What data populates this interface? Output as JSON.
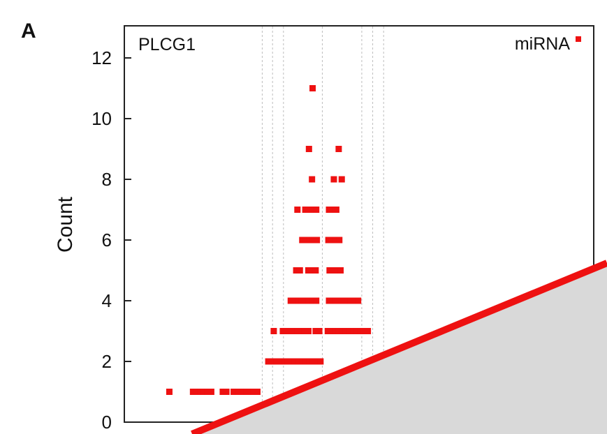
{
  "chart_data": {
    "type": "scatter",
    "panel_label": "A",
    "title": "PLCG1",
    "ylabel": "Count",
    "xlabel": "",
    "ylim": [
      0,
      13
    ],
    "yticks": [
      0,
      2,
      4,
      6,
      8,
      10,
      12
    ],
    "grid": "vertical dotted reference lines",
    "legend": {
      "position": "top-right",
      "entries": [
        "miRNA"
      ]
    },
    "point_color": "#ee1111",
    "vertical_reference_x": [
      0.432,
      0.449,
      0.467,
      0.531,
      0.596,
      0.614,
      0.632
    ],
    "series": [
      {
        "name": "miRNA",
        "points": [
          {
            "x": 0.279,
            "y": 1
          },
          {
            "x": 0.318,
            "y": 1
          },
          {
            "x": 0.324,
            "y": 1
          },
          {
            "x": 0.33,
            "y": 1
          },
          {
            "x": 0.336,
            "y": 1
          },
          {
            "x": 0.342,
            "y": 1
          },
          {
            "x": 0.348,
            "y": 1
          },
          {
            "x": 0.367,
            "y": 1
          },
          {
            "x": 0.373,
            "y": 1
          },
          {
            "x": 0.385,
            "y": 1
          },
          {
            "x": 0.394,
            "y": 1
          },
          {
            "x": 0.4,
            "y": 1
          },
          {
            "x": 0.406,
            "y": 1
          },
          {
            "x": 0.412,
            "y": 1
          },
          {
            "x": 0.418,
            "y": 1
          },
          {
            "x": 0.424,
            "y": 1
          },
          {
            "x": 0.442,
            "y": 2
          },
          {
            "x": 0.448,
            "y": 2
          },
          {
            "x": 0.456,
            "y": 2
          },
          {
            "x": 0.462,
            "y": 2
          },
          {
            "x": 0.468,
            "y": 2
          },
          {
            "x": 0.474,
            "y": 2
          },
          {
            "x": 0.48,
            "y": 2
          },
          {
            "x": 0.486,
            "y": 2
          },
          {
            "x": 0.492,
            "y": 2
          },
          {
            "x": 0.498,
            "y": 2
          },
          {
            "x": 0.504,
            "y": 2
          },
          {
            "x": 0.51,
            "y": 2
          },
          {
            "x": 0.516,
            "y": 2
          },
          {
            "x": 0.522,
            "y": 2
          },
          {
            "x": 0.528,
            "y": 2
          },
          {
            "x": 0.451,
            "y": 3
          },
          {
            "x": 0.466,
            "y": 3
          },
          {
            "x": 0.472,
            "y": 3
          },
          {
            "x": 0.478,
            "y": 3
          },
          {
            "x": 0.484,
            "y": 3
          },
          {
            "x": 0.49,
            "y": 3
          },
          {
            "x": 0.496,
            "y": 3
          },
          {
            "x": 0.502,
            "y": 3
          },
          {
            "x": 0.508,
            "y": 3
          },
          {
            "x": 0.52,
            "y": 3
          },
          {
            "x": 0.526,
            "y": 3
          },
          {
            "x": 0.54,
            "y": 3
          },
          {
            "x": 0.546,
            "y": 3
          },
          {
            "x": 0.552,
            "y": 3
          },
          {
            "x": 0.558,
            "y": 3
          },
          {
            "x": 0.564,
            "y": 3
          },
          {
            "x": 0.57,
            "y": 3
          },
          {
            "x": 0.576,
            "y": 3
          },
          {
            "x": 0.582,
            "y": 3
          },
          {
            "x": 0.588,
            "y": 3
          },
          {
            "x": 0.594,
            "y": 3
          },
          {
            "x": 0.6,
            "y": 3
          },
          {
            "x": 0.606,
            "y": 3
          },
          {
            "x": 0.479,
            "y": 4
          },
          {
            "x": 0.485,
            "y": 4
          },
          {
            "x": 0.491,
            "y": 4
          },
          {
            "x": 0.497,
            "y": 4
          },
          {
            "x": 0.503,
            "y": 4
          },
          {
            "x": 0.509,
            "y": 4
          },
          {
            "x": 0.515,
            "y": 4
          },
          {
            "x": 0.521,
            "y": 4
          },
          {
            "x": 0.542,
            "y": 4
          },
          {
            "x": 0.548,
            "y": 4
          },
          {
            "x": 0.554,
            "y": 4
          },
          {
            "x": 0.56,
            "y": 4
          },
          {
            "x": 0.566,
            "y": 4
          },
          {
            "x": 0.572,
            "y": 4
          },
          {
            "x": 0.578,
            "y": 4
          },
          {
            "x": 0.584,
            "y": 4
          },
          {
            "x": 0.59,
            "y": 4
          },
          {
            "x": 0.488,
            "y": 5
          },
          {
            "x": 0.494,
            "y": 5
          },
          {
            "x": 0.508,
            "y": 5
          },
          {
            "x": 0.514,
            "y": 5
          },
          {
            "x": 0.52,
            "y": 5
          },
          {
            "x": 0.543,
            "y": 5
          },
          {
            "x": 0.549,
            "y": 5
          },
          {
            "x": 0.555,
            "y": 5
          },
          {
            "x": 0.561,
            "y": 5
          },
          {
            "x": 0.498,
            "y": 6
          },
          {
            "x": 0.504,
            "y": 6
          },
          {
            "x": 0.51,
            "y": 6
          },
          {
            "x": 0.516,
            "y": 6
          },
          {
            "x": 0.522,
            "y": 6
          },
          {
            "x": 0.541,
            "y": 6
          },
          {
            "x": 0.547,
            "y": 6
          },
          {
            "x": 0.553,
            "y": 6
          },
          {
            "x": 0.559,
            "y": 6
          },
          {
            "x": 0.49,
            "y": 7
          },
          {
            "x": 0.503,
            "y": 7
          },
          {
            "x": 0.509,
            "y": 7
          },
          {
            "x": 0.515,
            "y": 7
          },
          {
            "x": 0.521,
            "y": 7
          },
          {
            "x": 0.542,
            "y": 7
          },
          {
            "x": 0.548,
            "y": 7
          },
          {
            "x": 0.554,
            "y": 7
          },
          {
            "x": 0.514,
            "y": 8
          },
          {
            "x": 0.55,
            "y": 8
          },
          {
            "x": 0.563,
            "y": 8
          },
          {
            "x": 0.509,
            "y": 9
          },
          {
            "x": 0.558,
            "y": 9
          },
          {
            "x": 0.515,
            "y": 11
          }
        ]
      }
    ]
  },
  "overlay": {
    "fill_color": "#d9d9d9",
    "line_color": "#ee1111"
  }
}
